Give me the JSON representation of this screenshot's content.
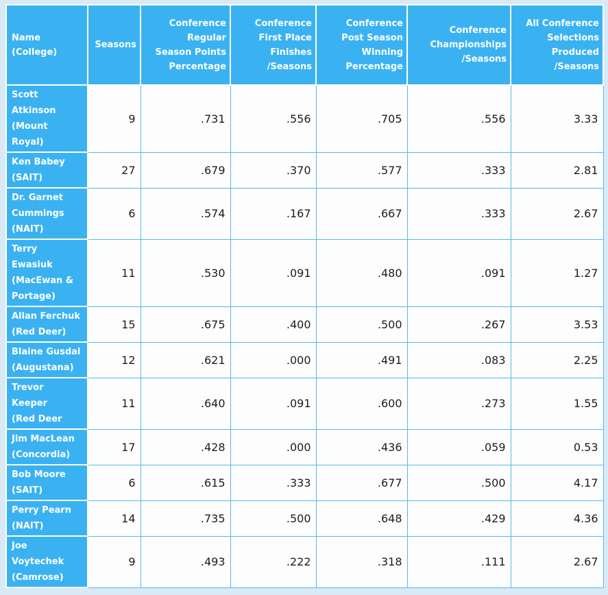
{
  "chart_data": {
    "type": "table",
    "title": "",
    "columns": [
      {
        "id": "name-college",
        "label": "Name\n(College)",
        "align": "left"
      },
      {
        "id": "seasons",
        "label": "Seasons",
        "align": "right"
      },
      {
        "id": "conf-regular-season-points-percentage",
        "label": "Conference\nRegular\nSeason Points\nPercentage",
        "align": "right"
      },
      {
        "id": "conf-first-place-finishes-per-seasons",
        "label": "Conference\nFirst Place\nFinishes\n/Seasons",
        "align": "right"
      },
      {
        "id": "conf-post-season-winning-percentage",
        "label": "Conference\nPost Season\nWinning\nPercentage",
        "align": "right"
      },
      {
        "id": "conf-championships-per-seasons",
        "label": "Conference\nChampionships\n/Seasons",
        "align": "right"
      },
      {
        "id": "all-conf-selections-produced-per-seasons",
        "label": "All Conference\nSelections\nProduced\n/Seasons",
        "align": "right"
      }
    ],
    "rows": [
      {
        "name": "Scott\nAtkinson\n(Mount\nRoyal)",
        "values": [
          "9",
          ".731",
          ".556",
          ".705",
          ".556",
          "3.33"
        ]
      },
      {
        "name": "Ken Babey\n(SAIT)",
        "values": [
          "27",
          ".679",
          ".370",
          ".577",
          ".333",
          "2.81"
        ]
      },
      {
        "name": "Dr. Garnet\nCummings\n(NAIT)",
        "values": [
          "6",
          ".574",
          ".167",
          ".667",
          ".333",
          "2.67"
        ]
      },
      {
        "name": "Terry\nEwasiuk\n(MacEwan &\nPortage)",
        "values": [
          "11",
          ".530",
          ".091",
          ".480",
          ".091",
          "1.27"
        ]
      },
      {
        "name": "Allan Ferchuk\n(Red Deer)",
        "values": [
          "15",
          ".675",
          ".400",
          ".500",
          ".267",
          "3.53"
        ]
      },
      {
        "name": "Blaine Gusdal\n(Augustana)",
        "values": [
          "12",
          ".621",
          ".000",
          ".491",
          ".083",
          "2.25"
        ]
      },
      {
        "name": "Trevor\nKeeper\n(Red Deer",
        "values": [
          "11",
          ".640",
          ".091",
          ".600",
          ".273",
          "1.55"
        ]
      },
      {
        "name": "Jim MacLean\n(Concordia)",
        "values": [
          "17",
          ".428",
          ".000",
          ".436",
          ".059",
          "0.53"
        ]
      },
      {
        "name": "Bob Moore\n(SAIT)",
        "values": [
          "6",
          ".615",
          ".333",
          ".677",
          ".500",
          "4.17"
        ]
      },
      {
        "name": "Perry Pearn\n(NAIT)",
        "values": [
          "14",
          ".735",
          ".500",
          ".648",
          ".429",
          "4.36"
        ]
      },
      {
        "name": "Joe\nVoytechek\n(Camrose)",
        "values": [
          "9",
          ".493",
          ".222",
          ".318",
          ".111",
          "2.67"
        ]
      }
    ],
    "layout": {
      "grid": "on",
      "header_background": "#3ab2f2",
      "header_text_color": "#ffffff",
      "grid_line_color": "#56b8e8",
      "cell_background": "#fdfdfd",
      "page_background": "#d9eaf6",
      "data_text_color": "#1c1c1c"
    }
  }
}
